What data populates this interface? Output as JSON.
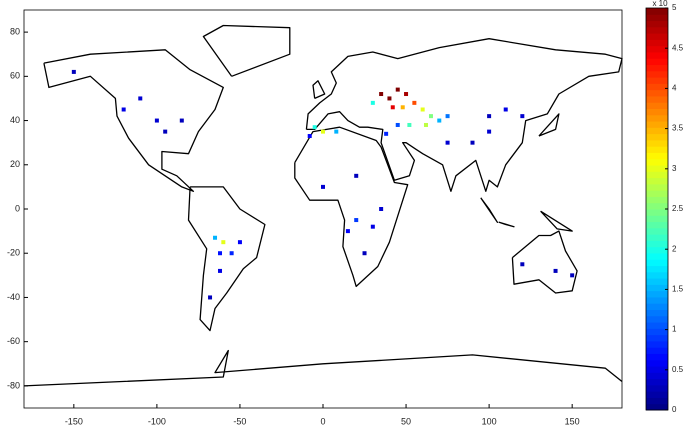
{
  "chart_data": {
    "type": "scatter",
    "xlim": [
      -180,
      180
    ],
    "ylim": [
      -90,
      90
    ],
    "xticks": [
      -150,
      -100,
      -50,
      0,
      50,
      100,
      150
    ],
    "yticks": [
      -80,
      -60,
      -40,
      -20,
      0,
      20,
      40,
      60,
      80
    ],
    "colormap": "jet",
    "clim": [
      0,
      5
    ],
    "cticks": [
      0,
      0.5,
      1,
      1.5,
      2,
      2.5,
      3,
      3.5,
      4,
      4.5,
      5
    ],
    "colorbar_exponent_label": "x 10",
    "x": [
      35,
      40,
      45,
      50,
      55,
      60,
      65,
      70,
      42,
      48,
      30,
      75,
      62,
      52,
      45,
      38,
      -5,
      0,
      8,
      -8,
      75,
      90,
      100,
      110,
      120,
      100,
      -120,
      -100,
      -95,
      -110,
      -85,
      -150,
      -60,
      -65,
      -50,
      -62,
      -68,
      -55,
      -62,
      20,
      15,
      30,
      0,
      20,
      35,
      25,
      120,
      140,
      150
    ],
    "y": [
      52,
      50,
      54,
      52,
      48,
      45,
      42,
      40,
      46,
      46,
      48,
      42,
      38,
      38,
      38,
      34,
      37,
      35,
      35,
      33,
      30,
      30,
      35,
      45,
      42,
      42,
      45,
      40,
      35,
      50,
      40,
      62,
      -15,
      -13,
      -15,
      -28,
      -40,
      -20,
      -20,
      -5,
      -10,
      -8,
      10,
      15,
      0,
      -20,
      -25,
      -28,
      -30
    ],
    "values": [
      5,
      5,
      5,
      4.8,
      4,
      3,
      2.5,
      1.5,
      4.5,
      3.5,
      2,
      1.2,
      2.8,
      2.2,
      1,
      0.8,
      2,
      3,
      1.5,
      0.6,
      0.4,
      0.3,
      0.4,
      0.5,
      0.4,
      0.3,
      0.5,
      0.4,
      0.3,
      0.4,
      0.3,
      0.3,
      3,
      1.5,
      0.6,
      0.5,
      0.3,
      0.8,
      0.7,
      0.9,
      0.6,
      0.5,
      0.4,
      0.3,
      0.4,
      0.3,
      0.3,
      0.3,
      0.3
    ]
  }
}
